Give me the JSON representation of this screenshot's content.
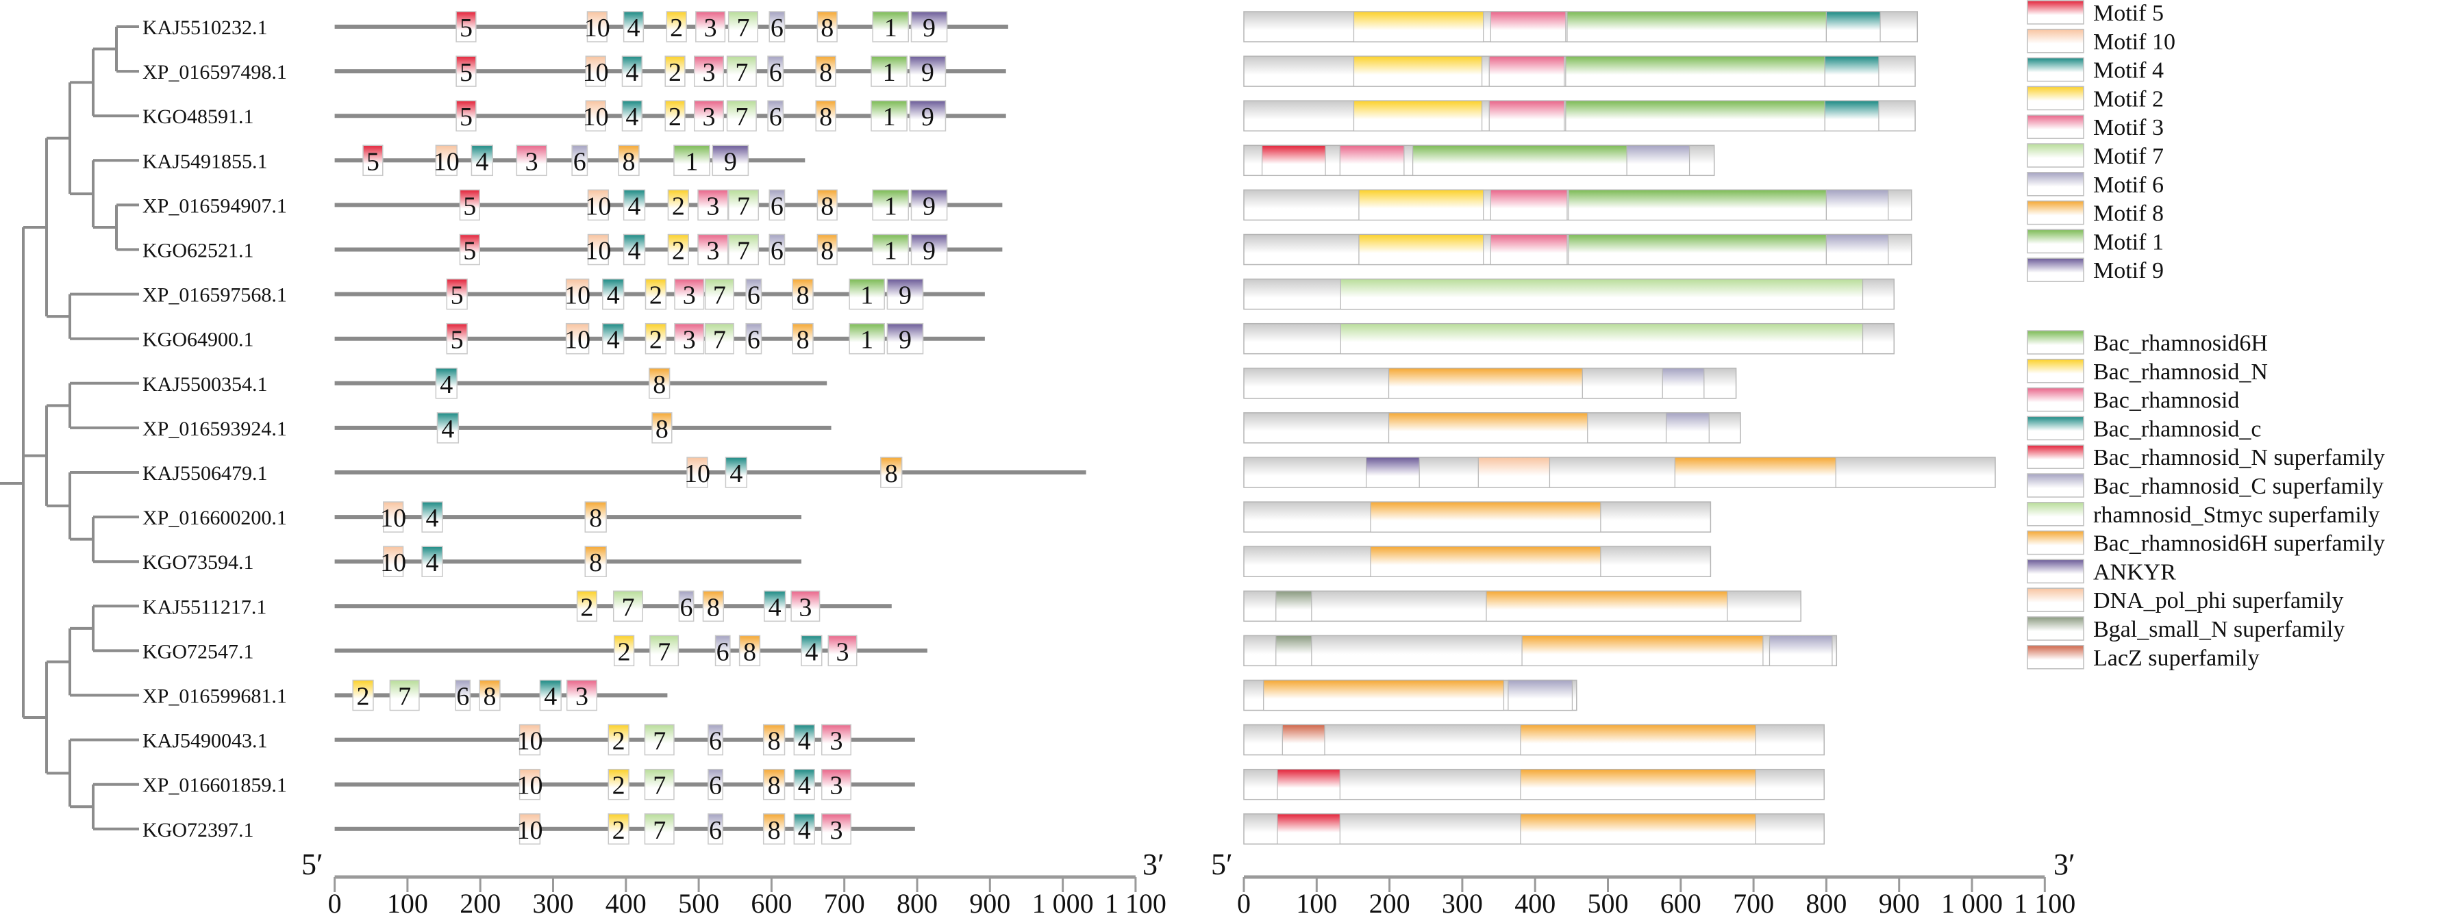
{
  "figure": {
    "motif_axis": {
      "start_label": "5′",
      "end_label": "3′",
      "ticks": [
        "0",
        "100",
        "200",
        "300",
        "400",
        "500",
        "600",
        "700",
        "800",
        "900",
        "1 000",
        "1 100"
      ],
      "range": [
        0,
        1100
      ]
    },
    "domain_axis": {
      "start_label": "5′",
      "end_label": "3′",
      "ticks": [
        "0",
        "100",
        "200",
        "300",
        "400",
        "500",
        "600",
        "700",
        "800",
        "900",
        "1 000",
        "1 100"
      ],
      "range": [
        0,
        1100
      ]
    }
  },
  "motif_colors": {
    "1": "#7cbb55",
    "2": "#fcd12a",
    "3": "#e9668a",
    "4": "#1c8a84",
    "5": "#e3233a",
    "6": "#a5a3c2",
    "7": "#b9dd9a",
    "8": "#f5a834",
    "9": "#6b5b98",
    "10": "#f8c4a0"
  },
  "motif_legend": [
    {
      "motif": "5",
      "label": "Motif 5"
    },
    {
      "motif": "10",
      "label": "Motif 10"
    },
    {
      "motif": "4",
      "label": "Motif 4"
    },
    {
      "motif": "2",
      "label": "Motif 2"
    },
    {
      "motif": "3",
      "label": "Motif 3"
    },
    {
      "motif": "7",
      "label": "Motif 7"
    },
    {
      "motif": "6",
      "label": "Motif 6"
    },
    {
      "motif": "8",
      "label": "Motif 8"
    },
    {
      "motif": "1",
      "label": "Motif 1"
    },
    {
      "motif": "9",
      "label": "Motif 9"
    }
  ],
  "domain_legend": [
    {
      "key": "Bac_rhamnosid6H",
      "label": "Bac_rhamnosid6H",
      "color": "#7cbb55"
    },
    {
      "key": "Bac_rhamnosid_N",
      "label": "Bac_rhamnosid_N",
      "color": "#fcd12a"
    },
    {
      "key": "Bac_rhamnosid",
      "label": "Bac_rhamnosid",
      "color": "#e9668a"
    },
    {
      "key": "Bac_rhamnosid_c",
      "label": "Bac_rhamnosid_c",
      "color": "#1c8a84"
    },
    {
      "key": "Bac_rhamnosid_N_sf",
      "label": "Bac_rhamnosid_N superfamily",
      "color": "#e3233a"
    },
    {
      "key": "Bac_rhamnosid_C_sf",
      "label": "Bac_rhamnosid_C superfamily",
      "color": "#a5a3c2"
    },
    {
      "key": "rhamnosid_Stmyc_sf",
      "label": "rhamnosid_Stmyc superfamily",
      "color": "#b9dd9a"
    },
    {
      "key": "Bac_rhamnosid6H_sf",
      "label": "Bac_rhamnosid6H superfamily",
      "color": "#f5a834"
    },
    {
      "key": "ANKYR",
      "label": "ANKYR",
      "color": "#6b5b98"
    },
    {
      "key": "DNA_pol_phi_sf",
      "label": "DNA_pol_phi superfamily",
      "color": "#f8c4a0"
    },
    {
      "key": "Bgal_small_N_sf",
      "label": "Bgal_small_N superfamily",
      "color": "#8a9a80"
    },
    {
      "key": "LacZ_sf",
      "label": "LacZ superfamily",
      "color": "#d0664a"
    }
  ],
  "tree": {
    "nodes": [
      {
        "id": "n1",
        "depth": 4,
        "children": [
          0,
          1
        ]
      },
      {
        "id": "n2",
        "depth": 3,
        "children": [
          "n1",
          2
        ]
      },
      {
        "id": "n3",
        "depth": 4,
        "children": [
          4,
          5
        ]
      },
      {
        "id": "n4",
        "depth": 3,
        "children": [
          3,
          "n3"
        ]
      },
      {
        "id": "n5",
        "depth": 2,
        "children": [
          "n2",
          "n4"
        ]
      },
      {
        "id": "n6",
        "depth": 2,
        "children": [
          6,
          7
        ]
      },
      {
        "id": "n7",
        "depth": 1,
        "children": [
          "n5",
          "n6"
        ]
      },
      {
        "id": "n8",
        "depth": 2,
        "children": [
          8,
          9
        ]
      },
      {
        "id": "n9",
        "depth": 3,
        "children": [
          11,
          12
        ]
      },
      {
        "id": "n10",
        "depth": 2,
        "children": [
          10,
          "n9"
        ]
      },
      {
        "id": "n11",
        "depth": 1,
        "children": [
          "n8",
          "n10"
        ]
      },
      {
        "id": "n12",
        "depth": 3,
        "children": [
          13,
          14
        ]
      },
      {
        "id": "n13",
        "depth": 2,
        "children": [
          "n12",
          15
        ]
      },
      {
        "id": "n14",
        "depth": 3,
        "children": [
          17,
          18
        ]
      },
      {
        "id": "n15",
        "depth": 2,
        "children": [
          16,
          "n14"
        ]
      },
      {
        "id": "n16",
        "depth": 1,
        "children": [
          "n13",
          "n15"
        ]
      },
      {
        "id": "root",
        "depth": 0,
        "children": [
          "n7",
          "n11",
          "n16"
        ]
      }
    ]
  },
  "proteins": [
    {
      "name": "KAJ5510232.1",
      "length": 925,
      "motifs": [
        [
          "5",
          167,
          194
        ],
        [
          "10",
          347,
          374
        ],
        [
          "4",
          397,
          424
        ],
        [
          "2",
          456,
          483
        ],
        [
          "3",
          496,
          536
        ],
        [
          "7",
          541,
          581
        ],
        [
          "6",
          597,
          618
        ],
        [
          "8",
          663,
          690
        ],
        [
          "1",
          739,
          788
        ],
        [
          "9",
          792,
          841
        ]
      ],
      "domains": [
        [
          "Bac_rhamnosid_N",
          151,
          329
        ],
        [
          "Bac_rhamnosid",
          339,
          442
        ],
        [
          "Bac_rhamnosid6H",
          444,
          800
        ],
        [
          "Bac_rhamnosid_c",
          800,
          874
        ]
      ]
    },
    {
      "name": "XP_016597498.1",
      "length": 922,
      "motifs": [
        [
          "5",
          167,
          194
        ],
        [
          "10",
          345,
          372
        ],
        [
          "4",
          395,
          422
        ],
        [
          "2",
          454,
          481
        ],
        [
          "3",
          494,
          534
        ],
        [
          "7",
          539,
          579
        ],
        [
          "6",
          595,
          616
        ],
        [
          "8",
          661,
          688
        ],
        [
          "1",
          737,
          786
        ],
        [
          "9",
          790,
          839
        ]
      ],
      "domains": [
        [
          "Bac_rhamnosid_N",
          151,
          327
        ],
        [
          "Bac_rhamnosid",
          337,
          440
        ],
        [
          "Bac_rhamnosid6H",
          442,
          798
        ],
        [
          "Bac_rhamnosid_c",
          798,
          872
        ]
      ]
    },
    {
      "name": "KGO48591.1",
      "length": 922,
      "motifs": [
        [
          "5",
          167,
          194
        ],
        [
          "10",
          345,
          372
        ],
        [
          "4",
          395,
          422
        ],
        [
          "2",
          454,
          481
        ],
        [
          "3",
          494,
          534
        ],
        [
          "7",
          539,
          579
        ],
        [
          "6",
          595,
          616
        ],
        [
          "8",
          661,
          688
        ],
        [
          "1",
          737,
          786
        ],
        [
          "9",
          790,
          839
        ]
      ],
      "domains": [
        [
          "Bac_rhamnosid_N",
          151,
          327
        ],
        [
          "Bac_rhamnosid",
          337,
          440
        ],
        [
          "Bac_rhamnosid6H",
          442,
          798
        ],
        [
          "Bac_rhamnosid_c",
          798,
          872
        ]
      ]
    },
    {
      "name": "KAJ5491855.1",
      "length": 646,
      "motifs": [
        [
          "5",
          39,
          66
        ],
        [
          "10",
          139,
          168
        ],
        [
          "4",
          188,
          217
        ],
        [
          "3",
          250,
          291
        ],
        [
          "6",
          326,
          347
        ],
        [
          "8",
          390,
          418
        ],
        [
          "1",
          466,
          515
        ],
        [
          "9",
          519,
          568
        ]
      ],
      "domains": [
        [
          "Bac_rhamnosid_N_sf",
          25,
          112
        ],
        [
          "Bac_rhamnosid",
          132,
          220
        ],
        [
          "Bac_rhamnosid6H",
          232,
          526
        ],
        [
          "Bac_rhamnosid_C_sf",
          526,
          612
        ]
      ]
    },
    {
      "name": "XP_016594907.1",
      "length": 917,
      "motifs": [
        [
          "5",
          172,
          199
        ],
        [
          "10",
          348,
          376
        ],
        [
          "4",
          397,
          426
        ],
        [
          "2",
          458,
          486
        ],
        [
          "3",
          499,
          540
        ],
        [
          "7",
          541,
          582
        ],
        [
          "6",
          597,
          618
        ],
        [
          "8",
          663,
          690
        ],
        [
          "1",
          739,
          788
        ],
        [
          "9",
          792,
          841
        ]
      ],
      "domains": [
        [
          "Bac_rhamnosid_N",
          158,
          329
        ],
        [
          "Bac_rhamnosid",
          339,
          444
        ],
        [
          "Bac_rhamnosid6H",
          446,
          800
        ],
        [
          "Bac_rhamnosid_C_sf",
          800,
          885
        ]
      ]
    },
    {
      "name": "KGO62521.1",
      "length": 917,
      "motifs": [
        [
          "5",
          172,
          199
        ],
        [
          "10",
          348,
          376
        ],
        [
          "4",
          397,
          426
        ],
        [
          "2",
          458,
          486
        ],
        [
          "3",
          499,
          540
        ],
        [
          "7",
          541,
          582
        ],
        [
          "6",
          597,
          618
        ],
        [
          "8",
          663,
          690
        ],
        [
          "1",
          739,
          788
        ],
        [
          "9",
          792,
          841
        ]
      ],
      "domains": [
        [
          "Bac_rhamnosid_N",
          158,
          329
        ],
        [
          "Bac_rhamnosid",
          339,
          444
        ],
        [
          "Bac_rhamnosid6H",
          446,
          800
        ],
        [
          "Bac_rhamnosid_C_sf",
          800,
          885
        ]
      ]
    },
    {
      "name": "XP_016597568.1",
      "length": 893,
      "motifs": [
        [
          "5",
          154,
          182
        ],
        [
          "10",
          318,
          349
        ],
        [
          "4",
          368,
          397
        ],
        [
          "2",
          427,
          455
        ],
        [
          "3",
          467,
          507
        ],
        [
          "7",
          509,
          548
        ],
        [
          "6",
          565,
          586
        ],
        [
          "8",
          629,
          657
        ],
        [
          "1",
          707,
          755
        ],
        [
          "9",
          759,
          808
        ]
      ],
      "domains": [
        [
          "rhamnosid_Stmyc_sf",
          133,
          850
        ]
      ]
    },
    {
      "name": "KGO64900.1",
      "length": 893,
      "motifs": [
        [
          "5",
          154,
          182
        ],
        [
          "10",
          318,
          349
        ],
        [
          "4",
          368,
          397
        ],
        [
          "2",
          427,
          455
        ],
        [
          "3",
          467,
          507
        ],
        [
          "7",
          509,
          548
        ],
        [
          "6",
          565,
          586
        ],
        [
          "8",
          629,
          657
        ],
        [
          "1",
          707,
          755
        ],
        [
          "9",
          759,
          808
        ]
      ],
      "domains": [
        [
          "rhamnosid_Stmyc_sf",
          133,
          850
        ]
      ]
    },
    {
      "name": "KAJ5500354.1",
      "length": 676,
      "motifs": [
        [
          "4",
          139,
          168
        ],
        [
          "8",
          432,
          460
        ]
      ],
      "domains": [
        [
          "Bac_rhamnosid6H_sf",
          199,
          465
        ],
        [
          "Bac_rhamnosid_C_sf",
          575,
          632
        ]
      ]
    },
    {
      "name": "XP_016593924.1",
      "length": 682,
      "motifs": [
        [
          "4",
          141,
          170
        ],
        [
          "8",
          436,
          463
        ]
      ],
      "domains": [
        [
          "Bac_rhamnosid6H_sf",
          199,
          472
        ],
        [
          "Bac_rhamnosid_C_sf",
          580,
          639
        ]
      ]
    },
    {
      "name": "KAJ5506479.1",
      "length": 1032,
      "motifs": [
        [
          "10",
          484,
          512
        ],
        [
          "4",
          537,
          566
        ],
        [
          "8",
          750,
          779
        ]
      ],
      "domains": [
        [
          "ANKYR",
          168,
          241
        ],
        [
          "DNA_pol_phi_sf",
          322,
          420
        ],
        [
          "Bac_rhamnosid6H_sf",
          592,
          813
        ]
      ]
    },
    {
      "name": "XP_016600200.1",
      "length": 641,
      "motifs": [
        [
          "10",
          67,
          94
        ],
        [
          "4",
          120,
          148
        ],
        [
          "8",
          344,
          373
        ]
      ],
      "domains": [
        [
          "Bac_rhamnosid6H_sf",
          174,
          490
        ]
      ]
    },
    {
      "name": "KGO73594.1",
      "length": 641,
      "motifs": [
        [
          "10",
          67,
          94
        ],
        [
          "4",
          120,
          148
        ],
        [
          "8",
          344,
          373
        ]
      ],
      "domains": [
        [
          "Bac_rhamnosid6H_sf",
          174,
          490
        ]
      ]
    },
    {
      "name": "KAJ5511217.1",
      "length": 765,
      "motifs": [
        [
          "2",
          333,
          360
        ],
        [
          "7",
          383,
          423
        ],
        [
          "6",
          473,
          493
        ],
        [
          "8",
          506,
          534
        ],
        [
          "4",
          590,
          619
        ],
        [
          "3",
          627,
          666
        ]
      ],
      "domains": [
        [
          "Bgal_small_N_sf",
          44,
          93
        ],
        [
          "Bac_rhamnosid6H_sf",
          333,
          664
        ]
      ]
    },
    {
      "name": "KGO72547.1",
      "length": 814,
      "motifs": [
        [
          "2",
          384,
          411
        ],
        [
          "7",
          433,
          472
        ],
        [
          "6",
          523,
          543
        ],
        [
          "8",
          556,
          584
        ],
        [
          "4",
          641,
          669
        ],
        [
          "3",
          678,
          717
        ]
      ],
      "domains": [
        [
          "Bgal_small_N_sf",
          44,
          93
        ],
        [
          "Bac_rhamnosid6H_sf",
          382,
          713
        ],
        [
          "Bac_rhamnosid_C_sf",
          722,
          808
        ]
      ]
    },
    {
      "name": "XP_016599681.1",
      "length": 457,
      "motifs": [
        [
          "2",
          25,
          53
        ],
        [
          "7",
          76,
          116
        ],
        [
          "6",
          166,
          186
        ],
        [
          "8",
          199,
          227
        ],
        [
          "4",
          282,
          311
        ],
        [
          "3",
          319,
          360
        ]
      ],
      "domains": [
        [
          "Bac_rhamnosid6H_sf",
          27,
          357
        ],
        [
          "Bac_rhamnosid_C_sf",
          363,
          451
        ]
      ]
    },
    {
      "name": "KAJ5490043.1",
      "length": 797,
      "motifs": [
        [
          "10",
          254,
          282
        ],
        [
          "2",
          376,
          404
        ],
        [
          "7",
          426,
          466
        ],
        [
          "6",
          513,
          533
        ],
        [
          "8",
          589,
          618
        ],
        [
          "4",
          631,
          659
        ],
        [
          "3",
          669,
          709
        ]
      ],
      "domains": [
        [
          "LacZ_sf",
          53,
          111
        ],
        [
          "Bac_rhamnosid6H_sf",
          380,
          703
        ]
      ]
    },
    {
      "name": "XP_016601859.1",
      "length": 797,
      "motifs": [
        [
          "10",
          254,
          282
        ],
        [
          "2",
          376,
          404
        ],
        [
          "7",
          426,
          466
        ],
        [
          "6",
          513,
          533
        ],
        [
          "8",
          589,
          618
        ],
        [
          "4",
          631,
          659
        ],
        [
          "3",
          669,
          709
        ]
      ],
      "domains": [
        [
          "Bac_rhamnosid_N_sf",
          46,
          132
        ],
        [
          "Bac_rhamnosid6H_sf",
          380,
          703
        ]
      ]
    },
    {
      "name": "KGO72397.1",
      "length": 797,
      "motifs": [
        [
          "10",
          254,
          282
        ],
        [
          "2",
          376,
          404
        ],
        [
          "7",
          426,
          466
        ],
        [
          "6",
          513,
          533
        ],
        [
          "8",
          589,
          618
        ],
        [
          "4",
          631,
          659
        ],
        [
          "3",
          669,
          709
        ]
      ],
      "domains": [
        [
          "Bac_rhamnosid_N_sf",
          46,
          132
        ],
        [
          "Bac_rhamnosid6H_sf",
          380,
          703
        ]
      ]
    }
  ]
}
